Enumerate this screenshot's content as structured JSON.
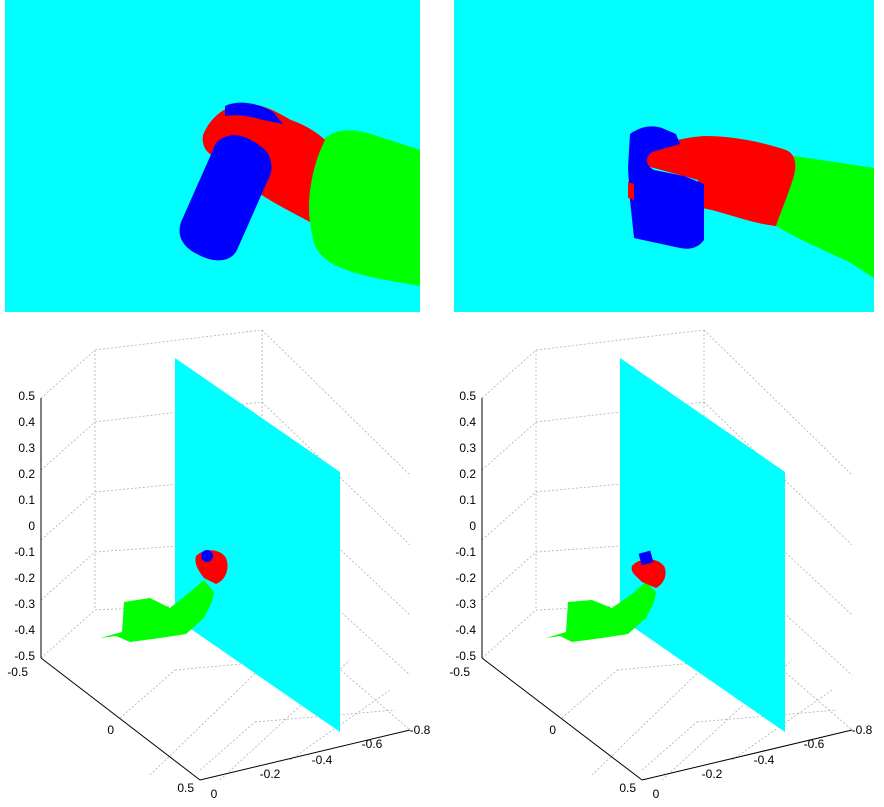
{
  "colors": {
    "background": "#00ffff",
    "hand": "#ff0000",
    "object": "#0000ff",
    "arm": "#00ff00",
    "grid": "#b0b0b0",
    "axis": "#000000"
  },
  "chart_data": [
    {
      "type": "image",
      "panel": "segmentation-left",
      "regions": [
        "background",
        "object",
        "hand",
        "arm"
      ]
    },
    {
      "type": "image",
      "panel": "segmentation-right",
      "regions": [
        "background",
        "object",
        "hand",
        "arm"
      ]
    },
    {
      "type": "scatter3d",
      "panel": "pointcloud-left",
      "zlim": [
        -0.5,
        0.5
      ],
      "z_ticks": [
        "0.5",
        "0.4",
        "0.3",
        "0.2",
        "0.1",
        "0",
        "-0.1",
        "-0.2",
        "-0.3",
        "-0.4",
        "-0.5"
      ],
      "x_ticks": [
        "-0.5",
        "0",
        "0.5"
      ],
      "y_ticks": [
        "0",
        "-0.2",
        "-0.4",
        "-0.6",
        "-0.8"
      ],
      "grid": true
    },
    {
      "type": "scatter3d",
      "panel": "pointcloud-right",
      "zlim": [
        -0.5,
        0.5
      ],
      "z_ticks": [
        "0.5",
        "0.4",
        "0.3",
        "0.2",
        "0.1",
        "0",
        "-0.1",
        "-0.2",
        "-0.3",
        "-0.4",
        "-0.5"
      ],
      "x_ticks": [
        "-0.5",
        "0",
        "0.5"
      ],
      "y_ticks": [
        "0",
        "-0.2",
        "-0.4",
        "-0.6",
        "-0.8"
      ],
      "grid": true
    }
  ]
}
